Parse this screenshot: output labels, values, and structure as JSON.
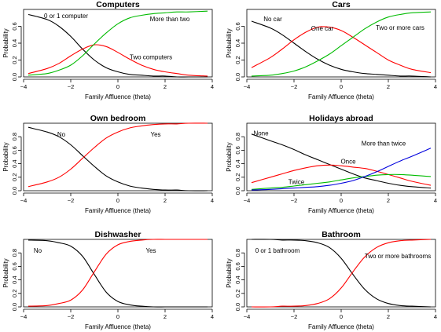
{
  "chart_data": [
    {
      "type": "line",
      "title": "Computers",
      "xlabel": "Family Affluence (theta)",
      "ylabel": "Probability",
      "xlim": [
        -4,
        4
      ],
      "ylim": [
        0,
        0.8
      ],
      "xticks": [
        -4,
        -2,
        0,
        2,
        4
      ],
      "yticks": [
        0.0,
        0.2,
        0.4,
        0.6
      ],
      "grid": false,
      "legend": "none",
      "x": [
        -3.8,
        -3,
        -2.5,
        -2,
        -1.5,
        -1,
        -0.5,
        0,
        0.5,
        1,
        1.5,
        2,
        2.5,
        3,
        3.8
      ],
      "series": [
        {
          "name": "0 or 1 computer",
          "color": "#000000",
          "label_pos": [
            -2.2,
            0.7
          ],
          "values": [
            0.74,
            0.68,
            0.6,
            0.48,
            0.33,
            0.2,
            0.11,
            0.06,
            0.03,
            0.02,
            0.01,
            0.01,
            0.0,
            0.0,
            0.0
          ]
        },
        {
          "name": "Two computers",
          "color": "#ff0000",
          "label_pos": [
            1.4,
            0.21
          ],
          "values": [
            0.04,
            0.1,
            0.16,
            0.25,
            0.33,
            0.38,
            0.36,
            0.29,
            0.21,
            0.14,
            0.09,
            0.06,
            0.04,
            0.02,
            0.01
          ]
        },
        {
          "name": "More than two",
          "color": "#00bb00",
          "label_pos": [
            2.2,
            0.66
          ],
          "values": [
            0.02,
            0.04,
            0.08,
            0.14,
            0.25,
            0.39,
            0.52,
            0.63,
            0.7,
            0.73,
            0.75,
            0.76,
            0.77,
            0.77,
            0.78
          ]
        }
      ]
    },
    {
      "type": "line",
      "title": "Cars",
      "xlabel": "Family Affluence (theta)",
      "ylabel": "Probability",
      "xlim": [
        -4,
        4
      ],
      "ylim": [
        0,
        0.8
      ],
      "xticks": [
        -4,
        -2,
        0,
        2,
        4
      ],
      "yticks": [
        0.0,
        0.2,
        0.4,
        0.6
      ],
      "grid": false,
      "legend": "none",
      "x": [
        -3.8,
        -3,
        -2.5,
        -2,
        -1.5,
        -1,
        -0.5,
        0,
        0.5,
        1,
        1.5,
        2,
        2.5,
        3,
        3.8
      ],
      "series": [
        {
          "name": "No car",
          "color": "#000000",
          "label_pos": [
            -2.9,
            0.66
          ],
          "values": [
            0.66,
            0.58,
            0.5,
            0.4,
            0.3,
            0.21,
            0.14,
            0.09,
            0.06,
            0.04,
            0.03,
            0.02,
            0.01,
            0.01,
            0.0
          ]
        },
        {
          "name": "One car",
          "color": "#ff0000",
          "label_pos": [
            -0.8,
            0.55
          ],
          "values": [
            0.11,
            0.23,
            0.33,
            0.44,
            0.53,
            0.59,
            0.59,
            0.55,
            0.47,
            0.38,
            0.29,
            0.2,
            0.14,
            0.09,
            0.05
          ]
        },
        {
          "name": "Two or more cars",
          "color": "#00bb00",
          "label_pos": [
            2.5,
            0.56
          ],
          "values": [
            0.01,
            0.02,
            0.04,
            0.07,
            0.12,
            0.19,
            0.27,
            0.37,
            0.47,
            0.57,
            0.65,
            0.71,
            0.74,
            0.76,
            0.77
          ]
        }
      ]
    },
    {
      "type": "line",
      "title": "Own bedroom",
      "xlabel": "Family Affluence (theta)",
      "ylabel": "Probability",
      "xlim": [
        -4,
        4
      ],
      "ylim": [
        0,
        1.0
      ],
      "xticks": [
        -4,
        -2,
        0,
        2,
        4
      ],
      "yticks": [
        0.0,
        0.2,
        0.4,
        0.6,
        0.8
      ],
      "grid": false,
      "legend": "none",
      "x": [
        -3.8,
        -3,
        -2.5,
        -2,
        -1.5,
        -1,
        -0.5,
        0,
        0.5,
        1,
        1.5,
        2,
        2.5,
        3,
        3.8
      ],
      "series": [
        {
          "name": "No",
          "color": "#000000",
          "label_pos": [
            -2.4,
            0.8
          ],
          "values": [
            0.94,
            0.87,
            0.8,
            0.68,
            0.52,
            0.36,
            0.22,
            0.13,
            0.07,
            0.04,
            0.02,
            0.01,
            0.01,
            0.0,
            0.0
          ]
        },
        {
          "name": "Yes",
          "color": "#ff0000",
          "label_pos": [
            1.6,
            0.8
          ],
          "values": [
            0.06,
            0.13,
            0.2,
            0.32,
            0.48,
            0.64,
            0.78,
            0.87,
            0.93,
            0.96,
            0.98,
            0.99,
            0.99,
            1.0,
            1.0
          ]
        }
      ]
    },
    {
      "type": "line",
      "title": "Holidays abroad",
      "xlabel": "Family Affluence (theta)",
      "ylabel": "Probability",
      "xlim": [
        -4,
        4
      ],
      "ylim": [
        0,
        1.0
      ],
      "xticks": [
        -4,
        -2,
        0,
        2,
        4
      ],
      "yticks": [
        0.0,
        0.2,
        0.4,
        0.6,
        0.8
      ],
      "grid": false,
      "legend": "none",
      "x": [
        -3.8,
        -3,
        -2.5,
        -2,
        -1.5,
        -1,
        -0.5,
        0,
        0.5,
        1,
        1.5,
        2,
        2.5,
        3,
        3.8
      ],
      "series": [
        {
          "name": "None",
          "color": "#000000",
          "label_pos": [
            -3.4,
            0.82
          ],
          "values": [
            0.84,
            0.74,
            0.68,
            0.61,
            0.53,
            0.46,
            0.39,
            0.32,
            0.25,
            0.19,
            0.15,
            0.11,
            0.08,
            0.06,
            0.04
          ]
        },
        {
          "name": "Once",
          "color": "#ff0000",
          "label_pos": [
            0.3,
            0.4
          ],
          "values": [
            0.12,
            0.2,
            0.25,
            0.3,
            0.34,
            0.37,
            0.38,
            0.37,
            0.35,
            0.33,
            0.29,
            0.24,
            0.19,
            0.14,
            0.08
          ]
        },
        {
          "name": "Twice",
          "color": "#00bb00",
          "label_pos": [
            -1.9,
            0.1
          ],
          "values": [
            0.02,
            0.04,
            0.05,
            0.07,
            0.09,
            0.11,
            0.13,
            0.16,
            0.19,
            0.21,
            0.23,
            0.24,
            0.24,
            0.23,
            0.21
          ]
        },
        {
          "name": "More than twice",
          "color": "#0000dd",
          "label_pos": [
            1.8,
            0.67
          ],
          "values": [
            0.01,
            0.02,
            0.03,
            0.04,
            0.05,
            0.06,
            0.08,
            0.11,
            0.15,
            0.21,
            0.28,
            0.36,
            0.44,
            0.51,
            0.63
          ]
        }
      ]
    },
    {
      "type": "line",
      "title": "Dishwasher",
      "xlabel": "Family Affluence (theta)",
      "ylabel": "Probability",
      "xlim": [
        -4,
        4
      ],
      "ylim": [
        0,
        1.0
      ],
      "xticks": [
        -4,
        -2,
        0,
        2,
        4
      ],
      "yticks": [
        0.0,
        0.2,
        0.4,
        0.6,
        0.8
      ],
      "grid": false,
      "legend": "none",
      "x": [
        -3.8,
        -3,
        -2.5,
        -2,
        -1.5,
        -1,
        -0.5,
        0,
        0.5,
        1,
        1.5,
        2,
        2.5,
        3,
        3.8
      ],
      "series": [
        {
          "name": "No",
          "color": "#000000",
          "label_pos": [
            -3.4,
            0.8
          ],
          "values": [
            0.99,
            0.98,
            0.95,
            0.9,
            0.75,
            0.48,
            0.22,
            0.08,
            0.03,
            0.01,
            0.0,
            0.0,
            0.0,
            0.0,
            0.0
          ]
        },
        {
          "name": "Yes",
          "color": "#ff0000",
          "label_pos": [
            1.4,
            0.8
          ],
          "values": [
            0.01,
            0.02,
            0.05,
            0.1,
            0.25,
            0.52,
            0.78,
            0.92,
            0.97,
            0.99,
            1.0,
            1.0,
            1.0,
            1.0,
            1.0
          ]
        }
      ]
    },
    {
      "type": "line",
      "title": "Bathroom",
      "xlabel": "Family Affluence (theta)",
      "ylabel": "Probability",
      "xlim": [
        -4,
        4
      ],
      "ylim": [
        0,
        1.0
      ],
      "xticks": [
        -4,
        -2,
        0,
        2,
        4
      ],
      "yticks": [
        0.0,
        0.2,
        0.4,
        0.6,
        0.8
      ],
      "grid": false,
      "legend": "none",
      "x": [
        -3.8,
        -3,
        -2.5,
        -2,
        -1.5,
        -1,
        -0.5,
        0,
        0.5,
        1,
        1.5,
        2,
        2.5,
        3,
        3.8
      ],
      "series": [
        {
          "name": "0 or 1 bathroom",
          "color": "#000000",
          "label_pos": [
            -2.7,
            0.8
          ],
          "values": [
            1.0,
            1.0,
            0.99,
            0.99,
            0.98,
            0.95,
            0.88,
            0.72,
            0.48,
            0.26,
            0.12,
            0.05,
            0.02,
            0.01,
            0.0
          ]
        },
        {
          "name": "Two or more bathrooms",
          "color": "#ff0000",
          "label_pos": [
            2.4,
            0.72
          ],
          "values": [
            0.0,
            0.0,
            0.01,
            0.01,
            0.02,
            0.05,
            0.12,
            0.28,
            0.52,
            0.74,
            0.88,
            0.95,
            0.98,
            0.99,
            1.0
          ]
        }
      ]
    }
  ]
}
